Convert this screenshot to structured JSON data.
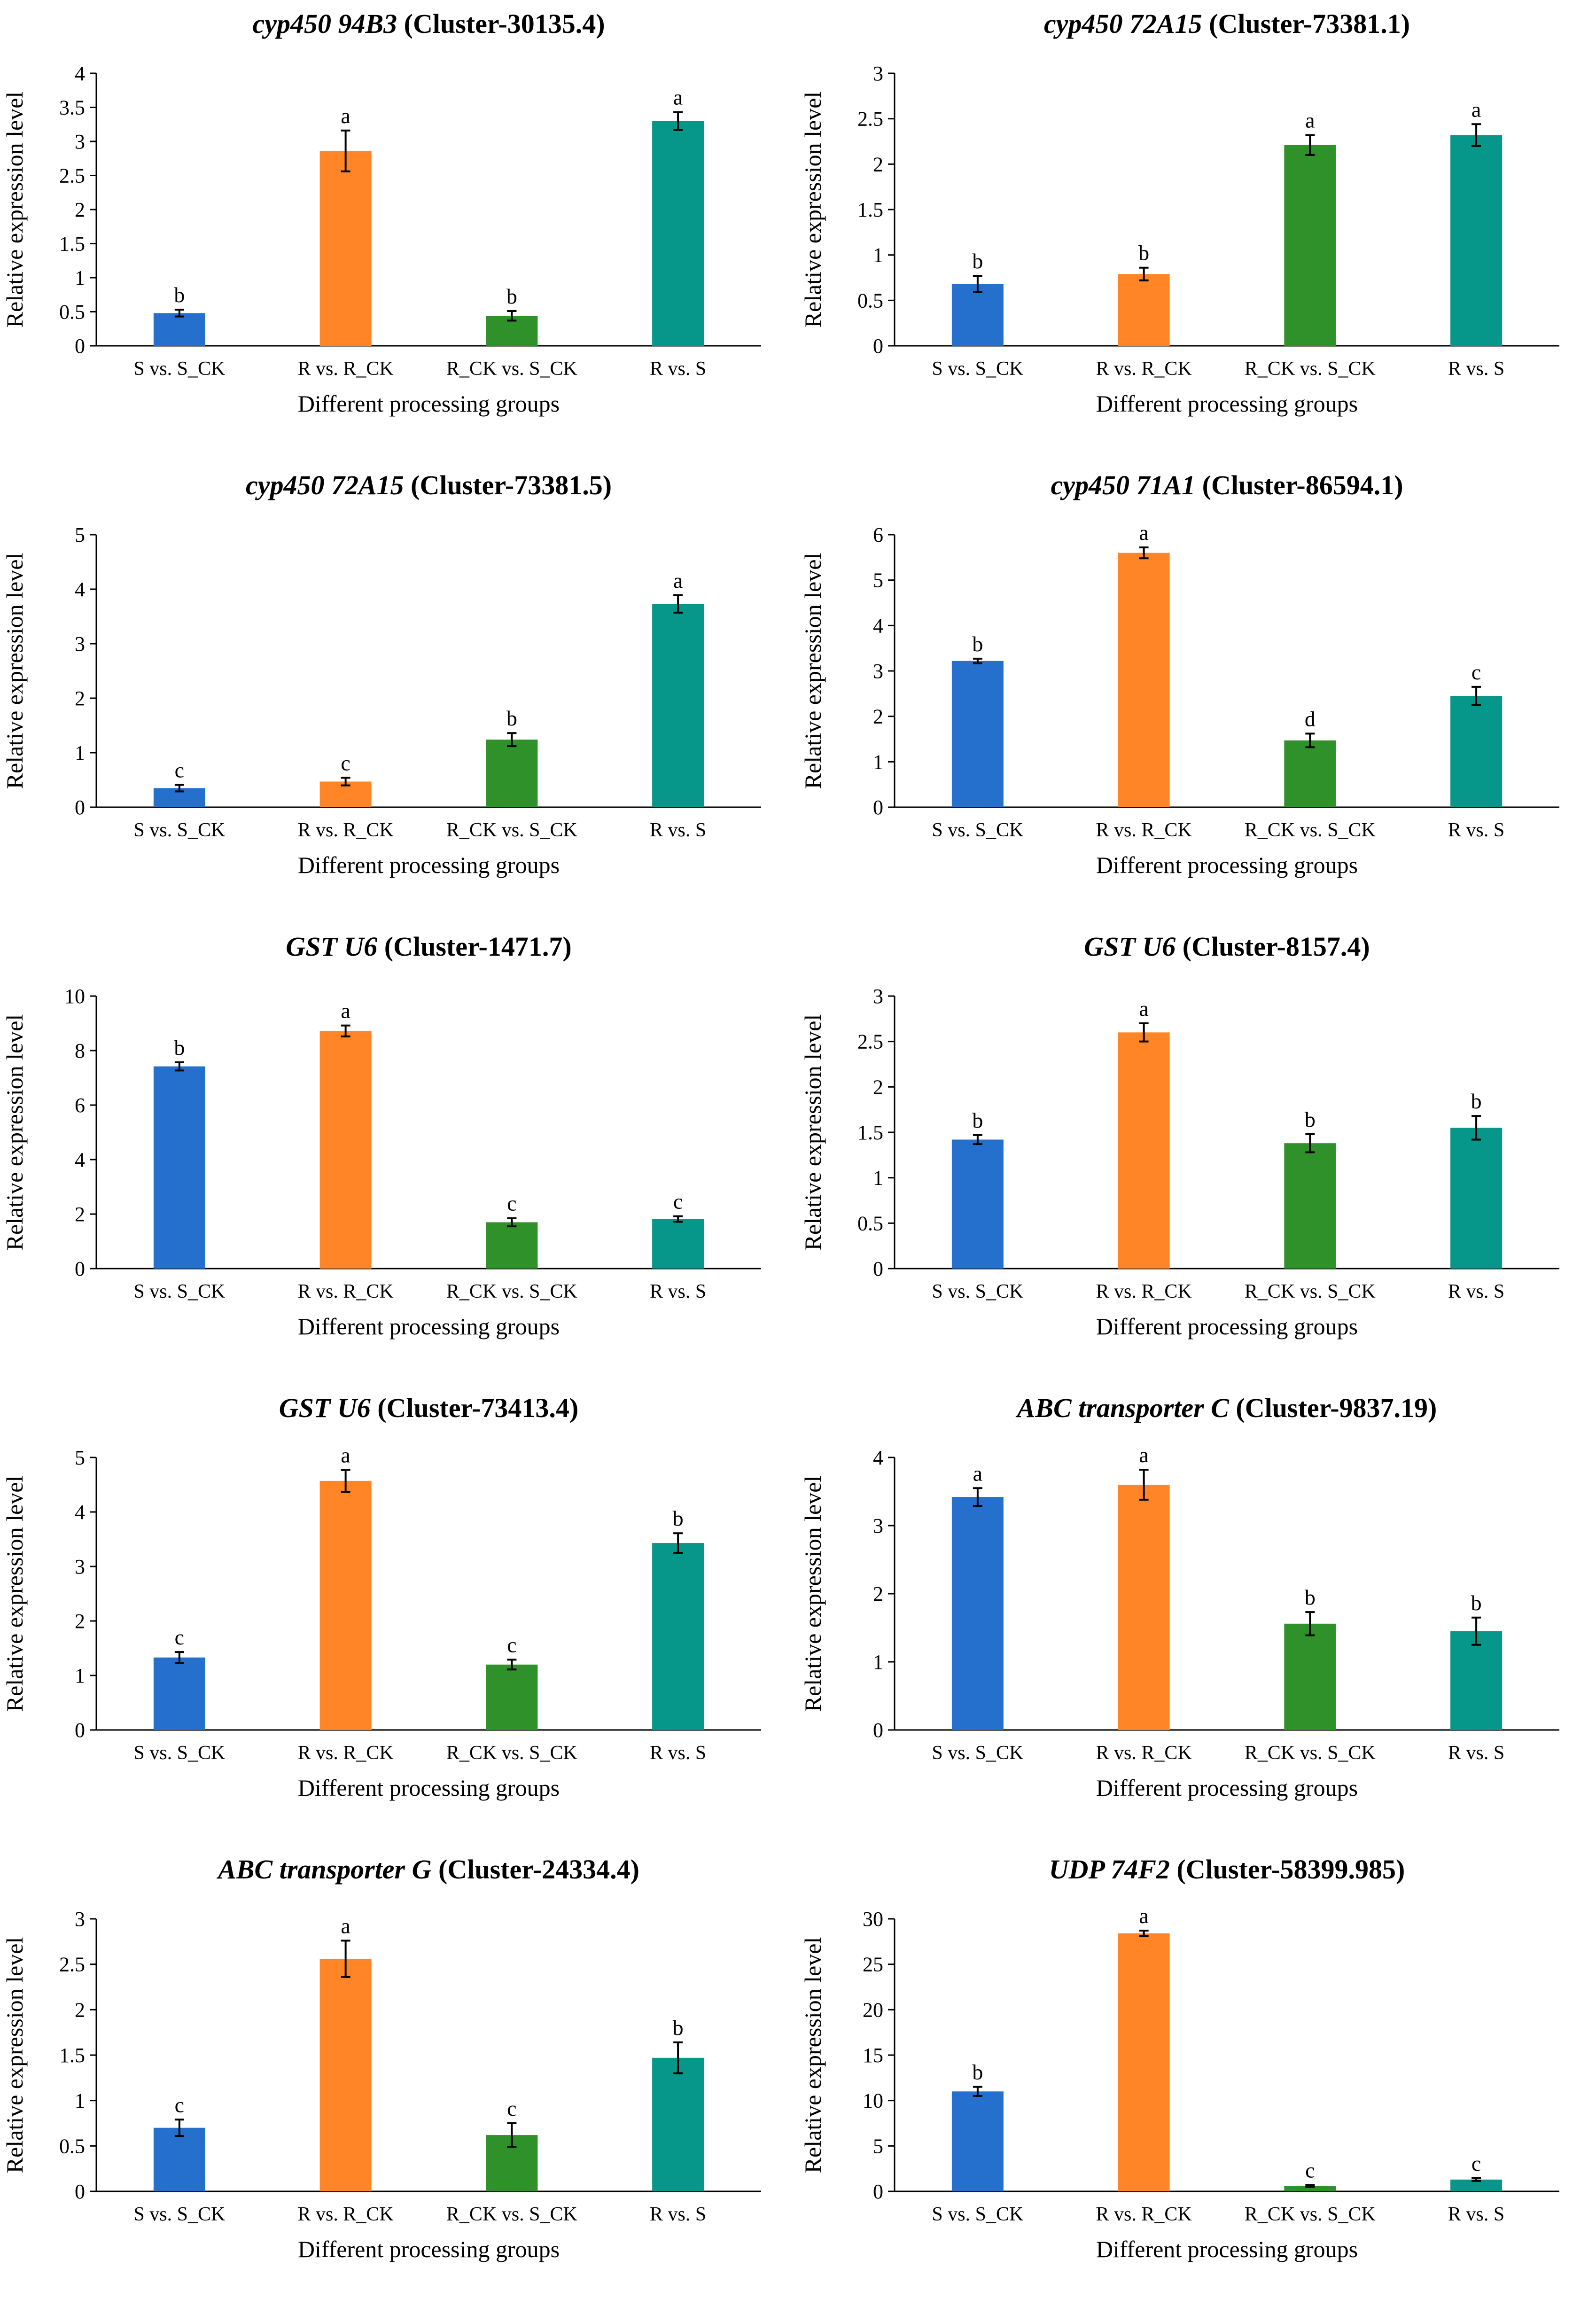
{
  "figure": {
    "x_axis_title": "Different processing groups",
    "y_axis_title": "Relative expression level",
    "categories": [
      "S vs. S_CK",
      "R vs. R_CK",
      "R_CK vs. S_CK",
      "R vs. S"
    ],
    "bar_colors": [
      "#2470CC",
      "#FF8526",
      "#2E9129",
      "#06968A"
    ]
  },
  "chart_data": [
    {
      "type": "bar",
      "title_gene": "cyp450 94B3",
      "title_cluster": " (Cluster-30135.4)",
      "xlabel": "Different processing groups",
      "ylabel": "Relative expression level",
      "categories": [
        "S vs. S_CK",
        "R vs. R_CK",
        "R_CK vs. S_CK",
        "R vs. S"
      ],
      "values": [
        0.48,
        2.86,
        0.44,
        3.3
      ],
      "errors": [
        0.05,
        0.3,
        0.07,
        0.13
      ],
      "significance": [
        "b",
        "a",
        "b",
        "a"
      ],
      "ylim": [
        0,
        4
      ],
      "yticks": [
        0,
        0.5,
        1,
        1.5,
        2,
        2.5,
        3,
        3.5,
        4
      ],
      "ytick_labels": [
        "0",
        "0.5",
        "1",
        "1.5",
        "2",
        "2.5",
        "3",
        "3.5",
        "4"
      ]
    },
    {
      "type": "bar",
      "title_gene": "cyp450 72A15",
      "title_cluster": " (Cluster-73381.1)",
      "xlabel": "Different processing groups",
      "ylabel": "Relative expression level",
      "categories": [
        "S vs. S_CK",
        "R vs. R_CK",
        "R_CK vs. S_CK",
        "R vs. S"
      ],
      "values": [
        0.68,
        0.79,
        2.21,
        2.32
      ],
      "errors": [
        0.09,
        0.07,
        0.11,
        0.12
      ],
      "significance": [
        "b",
        "b",
        "a",
        "a"
      ],
      "ylim": [
        0,
        3
      ],
      "yticks": [
        0,
        0.5,
        1,
        1.5,
        2,
        2.5,
        3
      ],
      "ytick_labels": [
        "0",
        "0.5",
        "1",
        "1.5",
        "2",
        "2.5",
        "3"
      ]
    },
    {
      "type": "bar",
      "title_gene": "cyp450 72A15",
      "title_cluster": " (Cluster-73381.5)",
      "xlabel": "Different processing groups",
      "ylabel": "Relative expression level",
      "categories": [
        "S vs. S_CK",
        "R vs. R_CK",
        "R_CK vs. S_CK",
        "R vs. S"
      ],
      "values": [
        0.35,
        0.47,
        1.24,
        3.73
      ],
      "errors": [
        0.06,
        0.07,
        0.12,
        0.16
      ],
      "significance": [
        "c",
        "c",
        "b",
        "a"
      ],
      "ylim": [
        0,
        5
      ],
      "yticks": [
        0,
        1,
        2,
        3,
        4,
        5
      ],
      "ytick_labels": [
        "0",
        "1",
        "2",
        "3",
        "4",
        "5"
      ]
    },
    {
      "type": "bar",
      "title_gene": "cyp450 71A1",
      "title_cluster": " (Cluster-86594.1)",
      "xlabel": "Different processing groups",
      "ylabel": "Relative expression level",
      "categories": [
        "S vs. S_CK",
        "R vs. R_CK",
        "R_CK vs. S_CK",
        "R vs. S"
      ],
      "values": [
        3.22,
        5.6,
        1.47,
        2.45
      ],
      "errors": [
        0.05,
        0.12,
        0.15,
        0.2
      ],
      "significance": [
        "b",
        "a",
        "d",
        "c"
      ],
      "ylim": [
        0,
        6
      ],
      "yticks": [
        0,
        1,
        2,
        3,
        4,
        5,
        6
      ],
      "ytick_labels": [
        "0",
        "1",
        "2",
        "3",
        "4",
        "5",
        "6"
      ]
    },
    {
      "type": "bar",
      "title_gene": "GST U6",
      "title_cluster": " (Cluster-1471.7)",
      "xlabel": "Different processing groups",
      "ylabel": "Relative expression level",
      "categories": [
        "S vs. S_CK",
        "R vs. R_CK",
        "R_CK vs. S_CK",
        "R vs. S"
      ],
      "values": [
        7.42,
        8.72,
        1.7,
        1.82
      ],
      "errors": [
        0.15,
        0.2,
        0.15,
        0.1
      ],
      "significance": [
        "b",
        "a",
        "c",
        "c"
      ],
      "ylim": [
        0,
        10
      ],
      "yticks": [
        0,
        2,
        4,
        6,
        8,
        10
      ],
      "ytick_labels": [
        "0",
        "2",
        "4",
        "6",
        "8",
        "10"
      ]
    },
    {
      "type": "bar",
      "title_gene": "GST U6",
      "title_cluster": " (Cluster-8157.4)",
      "xlabel": "Different processing groups",
      "ylabel": "Relative expression level",
      "categories": [
        "S vs. S_CK",
        "R vs. R_CK",
        "R_CK vs. S_CK",
        "R vs. S"
      ],
      "values": [
        1.42,
        2.6,
        1.38,
        1.55
      ],
      "errors": [
        0.05,
        0.1,
        0.1,
        0.13
      ],
      "significance": [
        "b",
        "a",
        "b",
        "b"
      ],
      "ylim": [
        0,
        3
      ],
      "yticks": [
        0,
        0.5,
        1,
        1.5,
        2,
        2.5,
        3
      ],
      "ytick_labels": [
        "0",
        "0.5",
        "1",
        "1.5",
        "2",
        "2.5",
        "3"
      ]
    },
    {
      "type": "bar",
      "title_gene": "GST U6",
      "title_cluster": " (Cluster-73413.4)",
      "xlabel": "Different processing groups",
      "ylabel": "Relative expression level",
      "categories": [
        "S vs. S_CK",
        "R vs. R_CK",
        "R_CK vs. S_CK",
        "R vs. S"
      ],
      "values": [
        1.33,
        4.57,
        1.2,
        3.43
      ],
      "errors": [
        0.1,
        0.2,
        0.09,
        0.18
      ],
      "significance": [
        "c",
        "a",
        "c",
        "b"
      ],
      "ylim": [
        0,
        5
      ],
      "yticks": [
        0,
        1,
        2,
        3,
        4,
        5
      ],
      "ytick_labels": [
        "0",
        "1",
        "2",
        "3",
        "4",
        "5"
      ]
    },
    {
      "type": "bar",
      "title_gene": "ABC transporter C",
      "title_cluster": " (Cluster-9837.19)",
      "xlabel": "Different processing groups",
      "ylabel": "Relative expression level",
      "categories": [
        "S vs. S_CK",
        "R vs. R_CK",
        "R_CK vs. S_CK",
        "R vs. S"
      ],
      "values": [
        3.42,
        3.6,
        1.56,
        1.45
      ],
      "errors": [
        0.13,
        0.22,
        0.17,
        0.2
      ],
      "significance": [
        "a",
        "a",
        "b",
        "b"
      ],
      "ylim": [
        0,
        4
      ],
      "yticks": [
        0,
        1,
        2,
        3,
        4
      ],
      "ytick_labels": [
        "0",
        "1",
        "2",
        "3",
        "4"
      ]
    },
    {
      "type": "bar",
      "title_gene": "ABC transporter G",
      "title_cluster": " (Cluster-24334.4)",
      "xlabel": "Different processing groups",
      "ylabel": "Relative expression level",
      "categories": [
        "S vs. S_CK",
        "R vs. R_CK",
        "R_CK vs. S_CK",
        "R vs. S"
      ],
      "values": [
        0.7,
        2.56,
        0.62,
        1.47
      ],
      "errors": [
        0.09,
        0.2,
        0.13,
        0.17
      ],
      "significance": [
        "c",
        "a",
        "c",
        "b"
      ],
      "ylim": [
        0,
        3
      ],
      "yticks": [
        0,
        0.5,
        1,
        1.5,
        2,
        2.5,
        3
      ],
      "ytick_labels": [
        "0",
        "0.5",
        "1",
        "1.5",
        "2",
        "2.5",
        "3"
      ]
    },
    {
      "type": "bar",
      "title_gene": "UDP 74F2",
      "title_cluster": " (Cluster-58399.985)",
      "xlabel": "Different processing groups",
      "ylabel": "Relative expression level",
      "categories": [
        "S vs. S_CK",
        "R vs. R_CK",
        "R_CK vs. S_CK",
        "R vs. S"
      ],
      "values": [
        11.0,
        28.4,
        0.6,
        1.3
      ],
      "errors": [
        0.5,
        0.3,
        0.1,
        0.15
      ],
      "significance": [
        "b",
        "a",
        "c",
        "c"
      ],
      "ylim": [
        0,
        30
      ],
      "yticks": [
        0,
        5,
        10,
        15,
        20,
        25,
        30
      ],
      "ytick_labels": [
        "0",
        "5",
        "10",
        "15",
        "20",
        "25",
        "30"
      ]
    }
  ]
}
